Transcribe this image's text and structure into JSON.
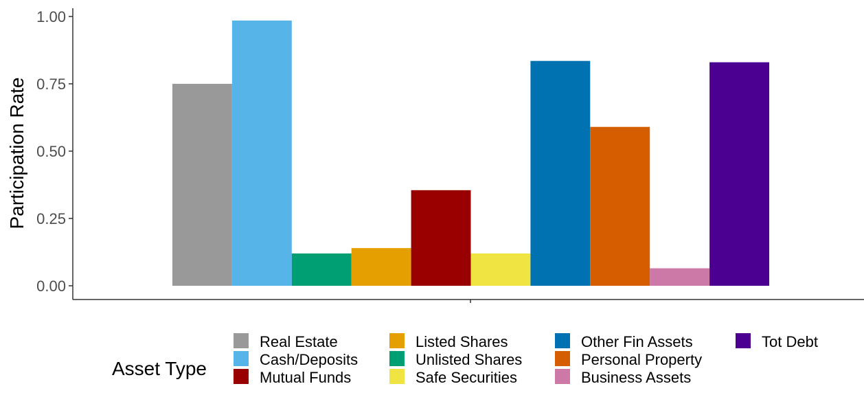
{
  "chart_data": {
    "type": "bar",
    "xlabel": "",
    "ylabel": "Participation Rate",
    "ylim": [
      0,
      1.0
    ],
    "yticks": [
      "0.00",
      "0.25",
      "0.50",
      "0.75",
      "1.00"
    ],
    "grid": false,
    "legend_position": "bottom",
    "legend_title": "Asset Type",
    "series": [
      {
        "name": "Real Estate",
        "value": 0.75,
        "color": "#999999"
      },
      {
        "name": "Cash/Deposits",
        "value": 0.985,
        "color": "#56B4E9"
      },
      {
        "name": "Unlisted Shares",
        "value": 0.12,
        "color": "#009E73"
      },
      {
        "name": "Listed Shares",
        "value": 0.14,
        "color": "#E69F00"
      },
      {
        "name": "Mutual Funds",
        "value": 0.355,
        "color": "#990000"
      },
      {
        "name": "Safe Securities",
        "value": 0.12,
        "color": "#F0E442"
      },
      {
        "name": "Other Fin Assets",
        "value": 0.835,
        "color": "#0072B2"
      },
      {
        "name": "Personal Property",
        "value": 0.59,
        "color": "#D55E00"
      },
      {
        "name": "Business Assets",
        "value": 0.065,
        "color": "#CC79A7"
      },
      {
        "name": "Tot Debt",
        "value": 0.83,
        "color": "#4B0092"
      }
    ],
    "legend_order": [
      "Real Estate",
      "Cash/Deposits",
      "Mutual Funds",
      "Listed Shares",
      "Unlisted Shares",
      "Safe Securities",
      "Other Fin Assets",
      "Personal Property",
      "Business Assets",
      "Tot Debt"
    ]
  }
}
